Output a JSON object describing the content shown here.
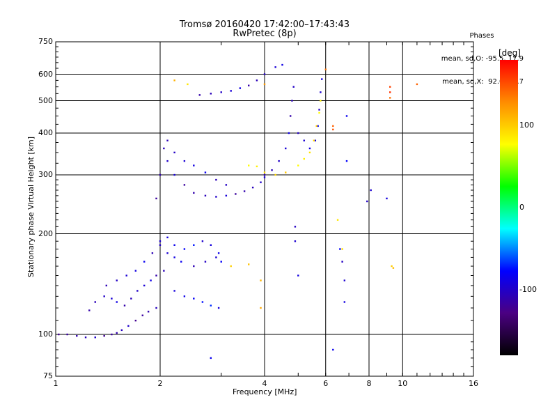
{
  "chart_data": {
    "type": "scatter",
    "title": "Tromsø 20160420 17:42:00–17:43:43",
    "subtitle": "RwPretec (8p)",
    "xlabel": "Frequency [MHz]",
    "ylabel": "Stationary phase Virtual Height [km]",
    "x_scale": "log",
    "y_scale": "log",
    "xlim": [
      1,
      16
    ],
    "ylim": [
      75,
      750
    ],
    "x_ticks": [
      1,
      2,
      4,
      6,
      8,
      10,
      16
    ],
    "x_tick_labels": [
      "1",
      "2",
      "4",
      "6",
      "8",
      "10",
      "16"
    ],
    "x_gridlines": [
      2,
      4,
      6,
      8,
      10
    ],
    "y_ticks": [
      75,
      100,
      200,
      300,
      400,
      500,
      600,
      750
    ],
    "y_tick_labels": [
      "75",
      "100",
      "200",
      "300",
      "400",
      "500",
      "600",
      "750"
    ],
    "y_gridlines": [
      100,
      200,
      300,
      400,
      500,
      600
    ],
    "grid": true,
    "phase_summary": {
      "heading": "Phases",
      "o_line": "mean, sd,O: -95.5, 17.9",
      "x_line": "mean, sd,X:  92.0, 23.7"
    },
    "colorbar": {
      "title": "[deg]",
      "range": [
        -180,
        180
      ],
      "ticks": [
        100,
        0,
        -100
      ],
      "tick_labels": [
        "100",
        "0",
        "-100"
      ],
      "colormap": "rainbow",
      "stops": [
        "#000000",
        "#4b0082",
        "#0000ff",
        "#00ffff",
        "#00ff00",
        "#ffff00",
        "#ff8c00",
        "#ff0000"
      ]
    },
    "traces": [
      {
        "name": "",
        "phase_deg": -110,
        "points": [
          [
            1.02,
            100
          ],
          [
            1.08,
            100
          ],
          [
            1.15,
            99
          ],
          [
            1.22,
            98
          ],
          [
            1.3,
            98
          ],
          [
            1.38,
            99
          ],
          [
            1.45,
            100
          ],
          [
            1.5,
            101
          ],
          [
            1.55,
            103
          ],
          [
            1.62,
            106
          ],
          [
            1.7,
            110
          ],
          [
            1.78,
            114
          ],
          [
            1.85,
            117
          ],
          [
            1.95,
            120
          ]
        ]
      },
      {
        "name": "",
        "phase_deg": -100,
        "points": [
          [
            1.25,
            118
          ],
          [
            1.3,
            125
          ],
          [
            1.38,
            130
          ],
          [
            1.45,
            128
          ],
          [
            1.5,
            125
          ],
          [
            1.58,
            122
          ],
          [
            1.65,
            128
          ],
          [
            1.72,
            135
          ],
          [
            1.8,
            140
          ],
          [
            1.88,
            145
          ],
          [
            1.95,
            150
          ],
          [
            2.05,
            155
          ]
        ]
      },
      {
        "name": "",
        "phase_deg": -95,
        "points": [
          [
            1.4,
            140
          ],
          [
            1.5,
            145
          ],
          [
            1.6,
            150
          ],
          [
            1.7,
            155
          ],
          [
            1.8,
            165
          ],
          [
            1.9,
            175
          ],
          [
            2.0,
            185
          ],
          [
            2.1,
            175
          ],
          [
            2.2,
            170
          ],
          [
            2.3,
            165
          ],
          [
            2.5,
            160
          ],
          [
            2.7,
            165
          ],
          [
            2.9,
            170
          ]
        ]
      },
      {
        "name": "",
        "phase_deg": -85,
        "points": [
          [
            2.0,
            190
          ],
          [
            2.1,
            195
          ],
          [
            2.2,
            185
          ],
          [
            2.35,
            180
          ],
          [
            2.5,
            185
          ],
          [
            2.65,
            190
          ],
          [
            2.8,
            185
          ],
          [
            2.95,
            175
          ],
          [
            3.0,
            165
          ]
        ]
      },
      {
        "name": "",
        "phase_deg": -80,
        "points": [
          [
            2.2,
            135
          ],
          [
            2.35,
            130
          ],
          [
            2.5,
            128
          ],
          [
            2.65,
            125
          ],
          [
            2.8,
            122
          ],
          [
            2.95,
            120
          ]
        ]
      },
      {
        "name": "",
        "phase_deg": -105,
        "points": [
          [
            1.95,
            255
          ],
          [
            2.0,
            300
          ],
          [
            2.05,
            360
          ],
          [
            2.1,
            330
          ],
          [
            2.2,
            300
          ],
          [
            2.35,
            280
          ],
          [
            2.5,
            265
          ],
          [
            2.7,
            260
          ],
          [
            2.9,
            258
          ],
          [
            3.1,
            260
          ],
          [
            3.3,
            263
          ],
          [
            3.5,
            268
          ],
          [
            3.7,
            275
          ],
          [
            3.9,
            285
          ],
          [
            4.0,
            295
          ]
        ]
      },
      {
        "name": "",
        "phase_deg": -95,
        "points": [
          [
            2.1,
            380
          ],
          [
            2.2,
            350
          ],
          [
            2.35,
            330
          ],
          [
            2.5,
            320
          ],
          [
            2.7,
            305
          ],
          [
            2.9,
            290
          ],
          [
            3.1,
            280
          ]
        ]
      },
      {
        "name": "",
        "phase_deg": -100,
        "points": [
          [
            4.0,
            300
          ],
          [
            4.2,
            310
          ],
          [
            4.4,
            330
          ],
          [
            4.6,
            360
          ],
          [
            4.7,
            400
          ],
          [
            4.75,
            450
          ],
          [
            4.8,
            500
          ],
          [
            4.85,
            550
          ]
        ]
      },
      {
        "name": "",
        "phase_deg": -90,
        "points": [
          [
            5.0,
            400
          ],
          [
            5.2,
            380
          ],
          [
            5.4,
            360
          ],
          [
            5.6,
            380
          ],
          [
            5.7,
            420
          ],
          [
            5.75,
            470
          ],
          [
            5.8,
            530
          ],
          [
            5.85,
            580
          ]
        ]
      },
      {
        "name": "",
        "phase_deg": 90,
        "points": [
          [
            3.6,
            320
          ],
          [
            3.8,
            318
          ],
          [
            4.0,
            305
          ],
          [
            4.3,
            300
          ],
          [
            4.6,
            305
          ],
          [
            5.0,
            320
          ],
          [
            5.2,
            335
          ],
          [
            5.4,
            350
          ],
          [
            5.55,
            380
          ],
          [
            5.65,
            420
          ],
          [
            5.75,
            460
          ],
          [
            5.8,
            500
          ]
        ]
      },
      {
        "name": "",
        "phase_deg": -100,
        "points": [
          [
            2.6,
            520
          ],
          [
            2.8,
            525
          ],
          [
            3.0,
            530
          ],
          [
            3.2,
            535
          ],
          [
            3.4,
            545
          ],
          [
            3.6,
            555
          ],
          [
            3.8,
            575
          ],
          [
            4.0,
            600
          ],
          [
            4.3,
            630
          ],
          [
            4.5,
            640
          ]
        ]
      },
      {
        "name": "",
        "phase_deg": 110,
        "points": [
          [
            3.2,
            160
          ],
          [
            3.6,
            162
          ],
          [
            3.9,
            145
          ],
          [
            3.9,
            120
          ],
          [
            4.0,
            560
          ]
        ]
      },
      {
        "name": "",
        "phase_deg": -90,
        "points": [
          [
            4.9,
            210
          ],
          [
            4.9,
            190
          ],
          [
            5.0,
            150
          ],
          [
            6.3,
            90
          ],
          [
            6.6,
            180
          ],
          [
            6.7,
            165
          ],
          [
            6.8,
            145
          ],
          [
            6.8,
            125
          ],
          [
            6.9,
            450
          ],
          [
            6.9,
            330
          ],
          [
            7.9,
            250
          ],
          [
            8.1,
            270
          ],
          [
            9.0,
            255
          ],
          [
            2.8,
            85
          ]
        ]
      },
      {
        "name": "",
        "phase_deg": 150,
        "points": [
          [
            6.0,
            620
          ],
          [
            6.3,
            420
          ],
          [
            6.3,
            410
          ],
          [
            9.2,
            550
          ],
          [
            9.2,
            530
          ],
          [
            9.2,
            510
          ],
          [
            11.0,
            560
          ]
        ]
      },
      {
        "name": "",
        "phase_deg": 100,
        "points": [
          [
            6.5,
            220
          ],
          [
            6.7,
            180
          ],
          [
            9.3,
            160
          ],
          [
            9.4,
            158
          ],
          [
            2.2,
            575
          ],
          [
            2.4,
            560
          ]
        ]
      }
    ]
  }
}
